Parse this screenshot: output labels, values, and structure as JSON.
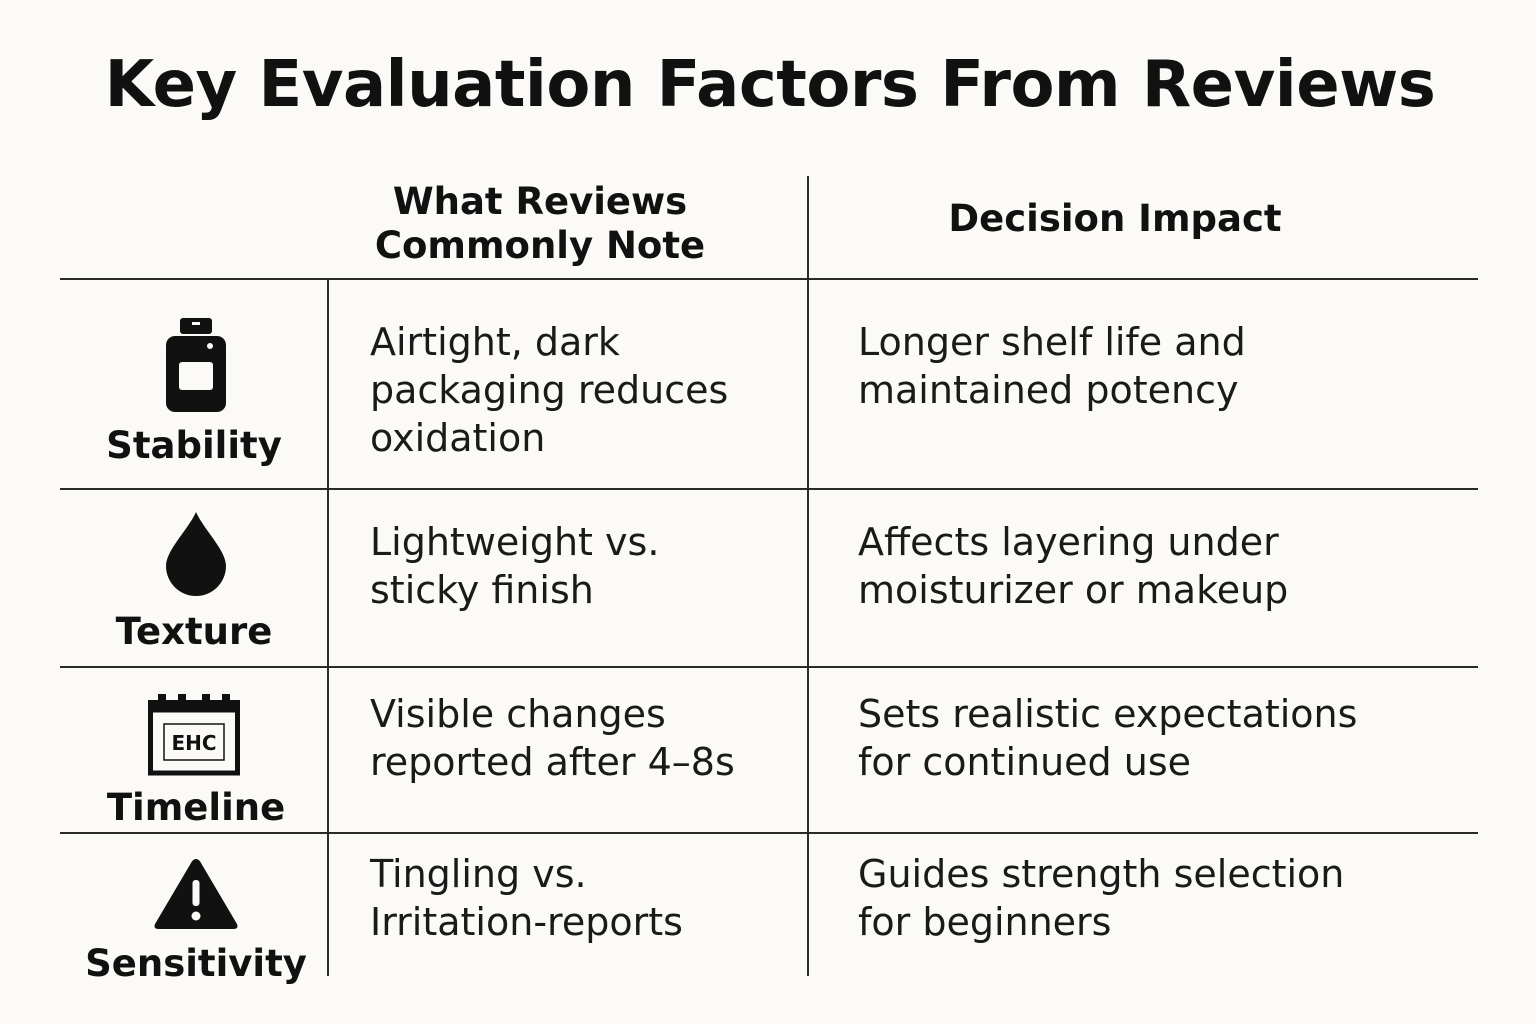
{
  "title": "Key Evaluation Factors From Reviews",
  "headers": {
    "col2_line1": "What Reviews",
    "col2_line2": "Commonly Note",
    "col3": "Decision Impact"
  },
  "rows": [
    {
      "factor": "Stability",
      "icon": "bottle-icon",
      "note_lines": [
        "Airtight, dark",
        "packaging reduces",
        "oxidation"
      ],
      "impact_lines": [
        "Longer shelf life and",
        "maintained potency"
      ]
    },
    {
      "factor": "Texture",
      "icon": "droplet-icon",
      "note_lines": [
        "Lightweight vs.",
        "sticky finish"
      ],
      "impact_lines": [
        "Affects layering under",
        "moisturizer or makeup"
      ]
    },
    {
      "factor": "Timeline",
      "icon": "calendar-icon",
      "icon_text": "EHC",
      "note_lines": [
        "Visible changes",
        "reported after 4–8s"
      ],
      "impact_lines": [
        "Sets realistic expectations",
        "for continued use"
      ]
    },
    {
      "factor": "Sensitivity",
      "icon": "warning-icon",
      "note_lines": [
        "Tingling vs.",
        "Irritation-reports"
      ],
      "impact_lines": [
        "Guides strength selection",
        "for beginners"
      ]
    }
  ],
  "colors": {
    "background": "#fbfaf6",
    "text": "#111111",
    "rule": "#2a2a2a"
  }
}
